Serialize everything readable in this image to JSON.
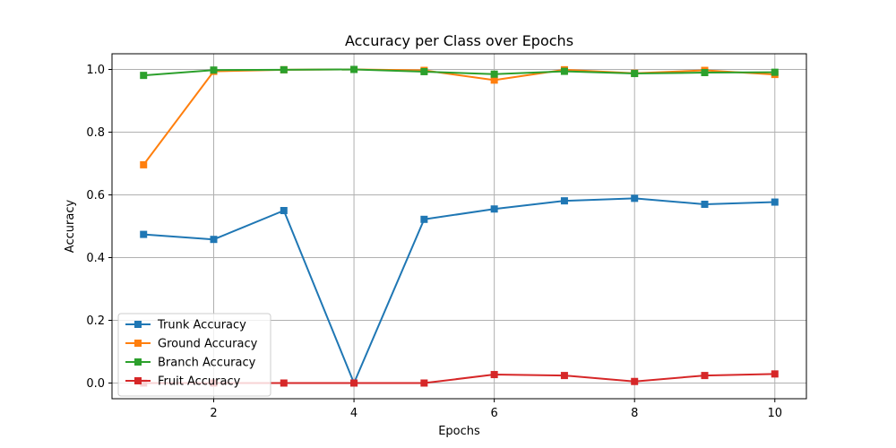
{
  "chart_data": {
    "type": "line",
    "title": "Accuracy per Class over Epochs",
    "xlabel": "Epochs",
    "ylabel": "Accuracy",
    "x": [
      1,
      2,
      3,
      4,
      5,
      6,
      7,
      8,
      9,
      10
    ],
    "xlim": [
      0.55,
      10.45
    ],
    "ylim": [
      -0.05,
      1.05
    ],
    "xticks": [
      2,
      4,
      6,
      8,
      10
    ],
    "yticks": [
      0.0,
      0.2,
      0.4,
      0.6,
      0.8,
      1.0
    ],
    "xtick_labels": [
      "2",
      "4",
      "6",
      "8",
      "10"
    ],
    "ytick_labels": [
      "0.0",
      "0.2",
      "0.4",
      "0.6",
      "0.8",
      "1.0"
    ],
    "grid": true,
    "legend_position": "lower-left",
    "marker": "square",
    "series": [
      {
        "name": "Trunk Accuracy",
        "color": "#1f77b4",
        "values": [
          0.474,
          0.458,
          0.55,
          0.0,
          0.522,
          0.555,
          0.581,
          0.589,
          0.57,
          0.577
        ]
      },
      {
        "name": "Ground Accuracy",
        "color": "#ff7f0e",
        "values": [
          0.696,
          0.994,
          0.999,
          1.0,
          0.997,
          0.966,
          0.999,
          0.988,
          0.997,
          0.984
        ]
      },
      {
        "name": "Branch Accuracy",
        "color": "#2ca02c",
        "values": [
          0.981,
          0.998,
          0.999,
          1.0,
          0.993,
          0.985,
          0.994,
          0.987,
          0.99,
          0.991
        ]
      },
      {
        "name": "Fruit Accuracy",
        "color": "#d62728",
        "values": [
          0.0,
          0.0,
          0.0,
          0.0,
          0.0,
          0.027,
          0.024,
          0.005,
          0.024,
          0.029
        ]
      }
    ]
  }
}
